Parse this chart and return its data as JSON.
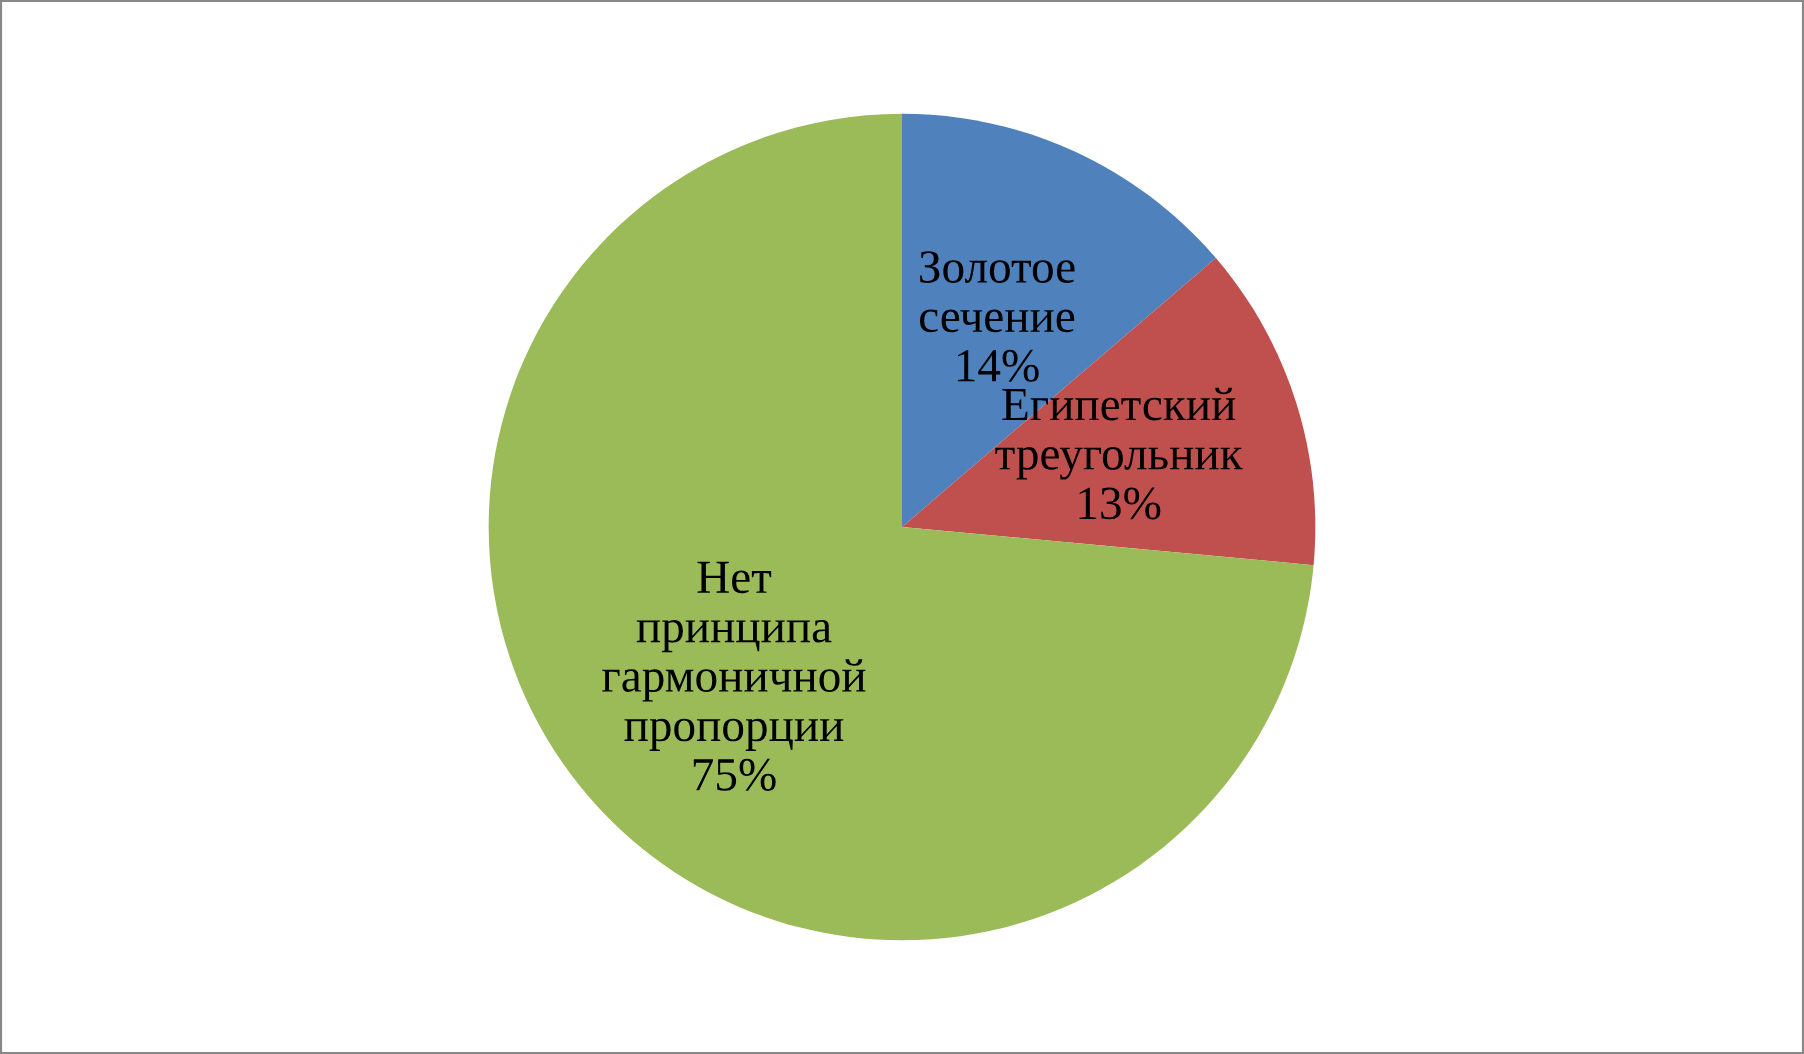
{
  "chart_data": {
    "type": "pie",
    "categories": [
      "Золотое сечение",
      "Египетский треугольник",
      "Нет принципа гармоничной пропорции"
    ],
    "values": [
      14,
      13,
      75
    ],
    "colors": [
      "#4f81bd",
      "#c0504d",
      "#9bbb59"
    ],
    "value_labels": [
      "14%",
      "13%",
      "75%"
    ],
    "legend": false
  }
}
